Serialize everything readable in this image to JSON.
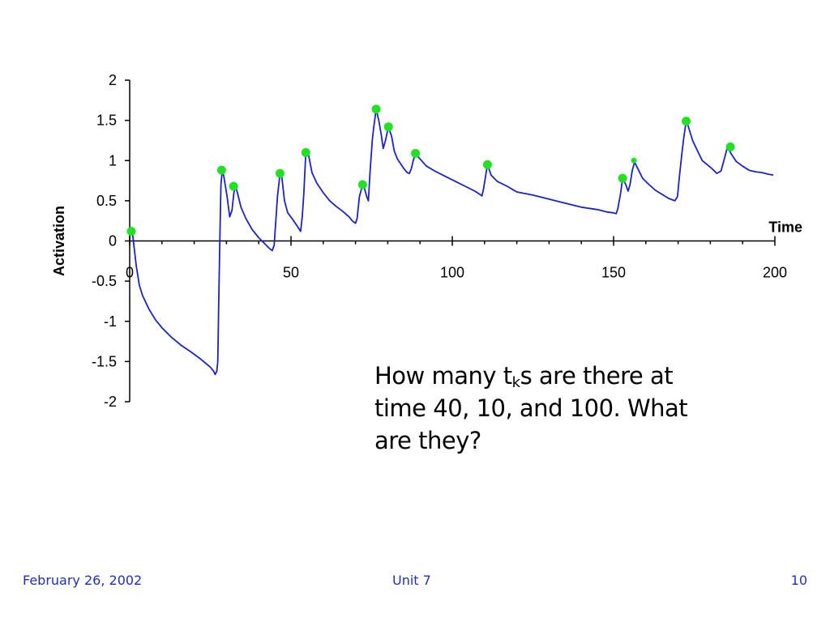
{
  "chart_data": {
    "type": "line",
    "title": "",
    "xlabel": "Time",
    "ylabel": "Activation",
    "xlim": [
      0,
      200
    ],
    "ylim": [
      -2,
      2
    ],
    "x_ticks": [
      0,
      50,
      100,
      150,
      200
    ],
    "y_ticks": [
      2,
      1.5,
      1,
      0.5,
      0,
      -0.5,
      -1,
      -1.5,
      -2
    ],
    "x_tick_labels": [
      "0",
      "50",
      "100",
      "150",
      "200"
    ],
    "y_tick_labels": [
      "2",
      "1.5",
      "1",
      "0.5",
      "0",
      "-0.5",
      "-1",
      "-1.5",
      "-2"
    ],
    "grid": false,
    "line_color": "#1a22c8",
    "marker_color": "#22e022",
    "series": [
      {
        "points": [
          [
            0.5,
            0.12
          ],
          [
            1,
            0.05
          ],
          [
            2,
            -0.3
          ],
          [
            3,
            -0.55
          ],
          [
            4,
            -0.68
          ],
          [
            6,
            -0.85
          ],
          [
            8,
            -0.98
          ],
          [
            10,
            -1.08
          ],
          [
            13,
            -1.2
          ],
          [
            16,
            -1.3
          ],
          [
            19,
            -1.38
          ],
          [
            22,
            -1.47
          ],
          [
            25,
            -1.57
          ],
          [
            26,
            -1.62
          ],
          [
            26.5,
            -1.66
          ],
          [
            27,
            -1.62
          ],
          [
            27.3,
            -1.5
          ],
          [
            27.6,
            -0.8
          ],
          [
            28,
            0.1
          ],
          [
            28.3,
            0.7
          ],
          [
            28.7,
            0.88
          ],
          [
            29.2,
            0.8
          ],
          [
            30.2,
            0.55
          ],
          [
            31,
            0.3
          ],
          [
            31.7,
            0.38
          ],
          [
            32.3,
            0.6
          ],
          [
            32.8,
            0.68
          ],
          [
            33.4,
            0.6
          ],
          [
            34.5,
            0.42
          ],
          [
            36,
            0.28
          ],
          [
            38,
            0.14
          ],
          [
            40,
            0.04
          ],
          [
            42,
            -0.04
          ],
          [
            43.5,
            -0.1
          ],
          [
            44.2,
            -0.12
          ],
          [
            44.8,
            -0.05
          ],
          [
            45.3,
            0.25
          ],
          [
            45.8,
            0.55
          ],
          [
            46.6,
            0.84
          ],
          [
            47.2,
            0.78
          ],
          [
            48,
            0.5
          ],
          [
            49,
            0.35
          ],
          [
            50.5,
            0.27
          ],
          [
            52,
            0.18
          ],
          [
            53,
            0.12
          ],
          [
            53.5,
            0.3
          ],
          [
            54,
            0.6
          ],
          [
            54.6,
            1.1
          ],
          [
            55.4,
            1.08
          ],
          [
            56.5,
            0.85
          ],
          [
            58,
            0.72
          ],
          [
            60,
            0.6
          ],
          [
            62,
            0.5
          ],
          [
            64,
            0.43
          ],
          [
            66,
            0.37
          ],
          [
            68,
            0.3
          ],
          [
            69,
            0.25
          ],
          [
            70,
            0.22
          ],
          [
            70.5,
            0.28
          ],
          [
            71.2,
            0.55
          ],
          [
            72.2,
            0.7
          ],
          [
            72.8,
            0.65
          ],
          [
            73.5,
            0.55
          ],
          [
            74,
            0.5
          ],
          [
            74.5,
            0.85
          ],
          [
            75.2,
            1.25
          ],
          [
            75.6,
            1.4
          ],
          [
            76.4,
            1.64
          ],
          [
            77.2,
            1.5
          ],
          [
            78,
            1.32
          ],
          [
            78.6,
            1.15
          ],
          [
            79.3,
            1.25
          ],
          [
            80.2,
            1.42
          ],
          [
            81.2,
            1.3
          ],
          [
            82,
            1.12
          ],
          [
            83,
            1.02
          ],
          [
            84,
            0.96
          ],
          [
            85,
            0.9
          ],
          [
            86,
            0.85
          ],
          [
            86.7,
            0.84
          ],
          [
            87.3,
            0.9
          ],
          [
            87.9,
            1.0
          ],
          [
            88.6,
            1.09
          ],
          [
            90,
            1.02
          ],
          [
            92,
            0.93
          ],
          [
            95,
            0.86
          ],
          [
            98,
            0.8
          ],
          [
            101,
            0.74
          ],
          [
            104,
            0.68
          ],
          [
            107,
            0.62
          ],
          [
            108.5,
            0.58
          ],
          [
            109.2,
            0.56
          ],
          [
            109.7,
            0.65
          ],
          [
            110.3,
            0.8
          ],
          [
            110.9,
            0.95
          ],
          [
            112,
            0.82
          ],
          [
            114,
            0.74
          ],
          [
            117,
            0.68
          ],
          [
            120,
            0.61
          ],
          [
            125,
            0.57
          ],
          [
            130,
            0.52
          ],
          [
            135,
            0.47
          ],
          [
            140,
            0.42
          ],
          [
            145,
            0.39
          ],
          [
            148,
            0.36
          ],
          [
            150,
            0.35
          ],
          [
            150.8,
            0.34
          ],
          [
            151.3,
            0.4
          ],
          [
            152.2,
            0.6
          ],
          [
            152.8,
            0.78
          ],
          [
            153.8,
            0.7
          ],
          [
            154.5,
            0.62
          ],
          [
            155.1,
            0.7
          ],
          [
            155.8,
            0.88
          ],
          [
            156.5,
            0.98
          ],
          [
            157.5,
            0.9
          ],
          [
            159,
            0.78
          ],
          [
            161,
            0.7
          ],
          [
            163,
            0.63
          ],
          [
            165,
            0.58
          ],
          [
            167,
            0.53
          ],
          [
            169,
            0.5
          ],
          [
            169.8,
            0.55
          ],
          [
            170.4,
            0.8
          ],
          [
            171.2,
            1.1
          ],
          [
            171.8,
            1.3
          ],
          [
            172.5,
            1.49
          ],
          [
            173.2,
            1.42
          ],
          [
            174.5,
            1.25
          ],
          [
            176,
            1.12
          ],
          [
            177.5,
            1.0
          ],
          [
            179,
            0.95
          ],
          [
            180.5,
            0.9
          ],
          [
            182,
            0.84
          ],
          [
            183.3,
            0.87
          ],
          [
            184.2,
            1.0
          ],
          [
            185.3,
            1.17
          ],
          [
            186.5,
            1.08
          ],
          [
            188,
            0.99
          ],
          [
            190,
            0.93
          ],
          [
            192,
            0.88
          ],
          [
            194,
            0.86
          ],
          [
            196,
            0.85
          ],
          [
            198,
            0.83
          ],
          [
            199.5,
            0.82
          ]
        ]
      }
    ],
    "markers": [
      [
        0.5,
        0.12
      ],
      [
        28.5,
        0.88
      ],
      [
        32.2,
        0.68
      ],
      [
        46.6,
        0.84
      ],
      [
        54.6,
        1.1
      ],
      [
        72.2,
        0.7
      ],
      [
        76.4,
        1.64
      ],
      [
        80.2,
        1.42
      ],
      [
        88.6,
        1.09
      ],
      [
        110.9,
        0.95
      ],
      [
        152.8,
        0.78
      ],
      [
        156.3,
        1.0
      ],
      [
        172.5,
        1.49
      ],
      [
        186.2,
        1.17
      ]
    ],
    "marker_sizes": [
      5.5,
      5.5,
      5.5,
      5.5,
      5.5,
      5.5,
      5.5,
      5.5,
      5.5,
      5.5,
      5.5,
      3.5,
      5.5,
      5.5
    ]
  },
  "question": {
    "line1_prefix": "How many t",
    "line1_sub": "k",
    "line1_suffix": "s are there at",
    "line2": "time 40, 10, and 100.  What",
    "line3": "are they?"
  },
  "footer": {
    "date": "February 26, 2002",
    "unit": "Unit 7",
    "page": "10"
  },
  "colors": {
    "footer_text": "#1f2fb8"
  }
}
